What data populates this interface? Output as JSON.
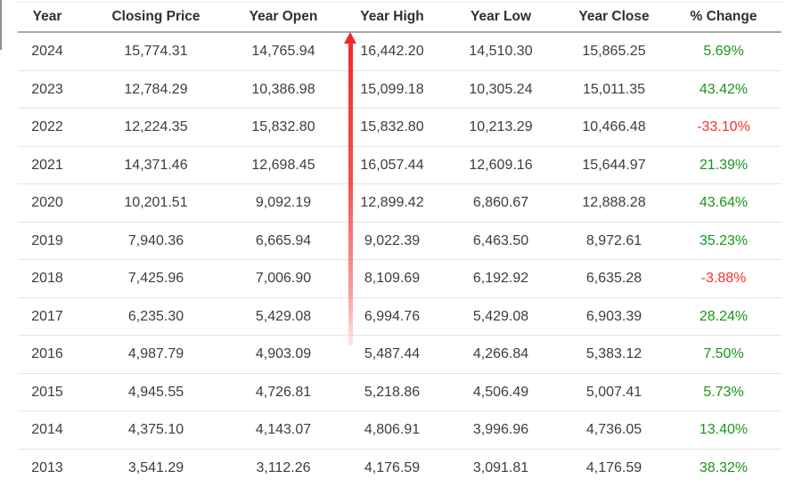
{
  "chart_data": {
    "type": "table",
    "columns": [
      "Year",
      "Closing Price",
      "Year Open",
      "Year High",
      "Year Low",
      "Year Close",
      "% Change"
    ],
    "rows": [
      {
        "year": "2024",
        "closing_price": "15,774.31",
        "year_open": "14,765.94",
        "year_high": "16,442.20",
        "year_low": "14,510.30",
        "year_close": "15,865.25",
        "pct_change": "5.69%",
        "direction": "positive"
      },
      {
        "year": "2023",
        "closing_price": "12,784.29",
        "year_open": "10,386.98",
        "year_high": "15,099.18",
        "year_low": "10,305.24",
        "year_close": "15,011.35",
        "pct_change": "43.42%",
        "direction": "positive"
      },
      {
        "year": "2022",
        "closing_price": "12,224.35",
        "year_open": "15,832.80",
        "year_high": "15,832.80",
        "year_low": "10,213.29",
        "year_close": "10,466.48",
        "pct_change": "-33.10%",
        "direction": "negative"
      },
      {
        "year": "2021",
        "closing_price": "14,371.46",
        "year_open": "12,698.45",
        "year_high": "16,057.44",
        "year_low": "12,609.16",
        "year_close": "15,644.97",
        "pct_change": "21.39%",
        "direction": "positive"
      },
      {
        "year": "2020",
        "closing_price": "10,201.51",
        "year_open": "9,092.19",
        "year_high": "12,899.42",
        "year_low": "6,860.67",
        "year_close": "12,888.28",
        "pct_change": "43.64%",
        "direction": "positive"
      },
      {
        "year": "2019",
        "closing_price": "7,940.36",
        "year_open": "6,665.94",
        "year_high": "9,022.39",
        "year_low": "6,463.50",
        "year_close": "8,972.61",
        "pct_change": "35.23%",
        "direction": "positive"
      },
      {
        "year": "2018",
        "closing_price": "7,425.96",
        "year_open": "7,006.90",
        "year_high": "8,109.69",
        "year_low": "6,192.92",
        "year_close": "6,635.28",
        "pct_change": "-3.88%",
        "direction": "negative"
      },
      {
        "year": "2017",
        "closing_price": "6,235.30",
        "year_open": "5,429.08",
        "year_high": "6,994.76",
        "year_low": "5,429.08",
        "year_close": "6,903.39",
        "pct_change": "28.24%",
        "direction": "positive"
      },
      {
        "year": "2016",
        "closing_price": "4,987.79",
        "year_open": "4,903.09",
        "year_high": "5,487.44",
        "year_low": "4,266.84",
        "year_close": "5,383.12",
        "pct_change": "7.50%",
        "direction": "positive"
      },
      {
        "year": "2015",
        "closing_price": "4,945.55",
        "year_open": "4,726.81",
        "year_high": "5,218.86",
        "year_low": "4,506.49",
        "year_close": "5,007.41",
        "pct_change": "5.73%",
        "direction": "positive"
      },
      {
        "year": "2014",
        "closing_price": "4,375.10",
        "year_open": "4,143.07",
        "year_high": "4,806.91",
        "year_low": "3,996.96",
        "year_close": "4,736.05",
        "pct_change": "13.40%",
        "direction": "positive"
      },
      {
        "year": "2013",
        "closing_price": "3,541.29",
        "year_open": "3,112.26",
        "year_high": "4,176.59",
        "year_low": "3,091.81",
        "year_close": "4,176.59",
        "pct_change": "38.32%",
        "direction": "positive"
      }
    ]
  },
  "annotation": {
    "type": "up-arrow",
    "color": "#ee2b2b",
    "note": "red arrow pointing upward alongside the Year High column, fading toward the bottom"
  },
  "colors": {
    "positive": "#179617",
    "negative": "#f43030",
    "text": "#3d3d3d",
    "header_text": "#303030",
    "row_border": "#e4e4e4",
    "header_border": "#a8a8a8",
    "arrow": "#ee2b2b"
  }
}
